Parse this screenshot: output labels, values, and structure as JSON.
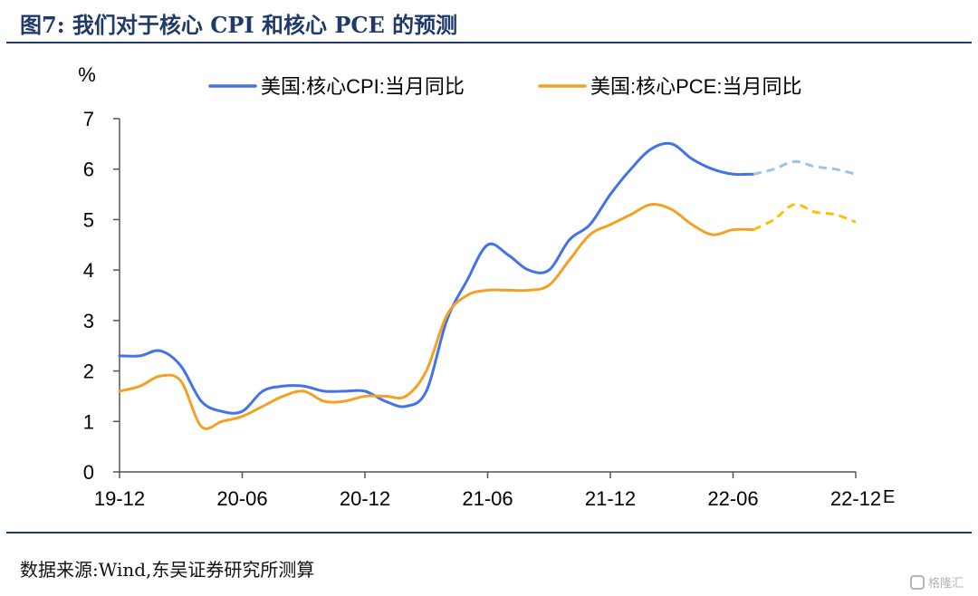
{
  "figure": {
    "title": "图7:  我们对于核心 CPI 和核心 PCE 的预测",
    "source": "数据来源:Wind,东吴证券研究所测算",
    "watermark": "格隆汇"
  },
  "chart_data": {
    "type": "line",
    "title": "",
    "ylabel": "%",
    "xlabel": "",
    "ylim": [
      0,
      7
    ],
    "y_ticks": [
      0,
      1,
      2,
      3,
      4,
      5,
      6,
      7
    ],
    "x_ticks": [
      "19-12",
      "20-06",
      "20-12",
      "21-06",
      "21-12",
      "22-06",
      "22-12"
    ],
    "x_suffix_label": "E",
    "legend_position": "top",
    "grid": false,
    "series": [
      {
        "name": "美国:核心CPI:当月同比",
        "color": "#4472e8",
        "forecast_color": "#9dc3e6",
        "x": [
          "2019-12",
          "2020-01",
          "2020-02",
          "2020-03",
          "2020-04",
          "2020-05",
          "2020-06",
          "2020-07",
          "2020-08",
          "2020-09",
          "2020-10",
          "2020-11",
          "2020-12",
          "2021-01",
          "2021-02",
          "2021-03",
          "2021-04",
          "2021-05",
          "2021-06",
          "2021-07",
          "2021-08",
          "2021-09",
          "2021-10",
          "2021-11",
          "2021-12",
          "2022-01",
          "2022-02",
          "2022-03",
          "2022-04",
          "2022-05",
          "2022-06",
          "2022-07",
          "2022-08",
          "2022-09",
          "2022-10",
          "2022-11",
          "2022-12"
        ],
        "values": [
          2.3,
          2.3,
          2.4,
          2.1,
          1.4,
          1.2,
          1.2,
          1.6,
          1.7,
          1.7,
          1.6,
          1.6,
          1.6,
          1.4,
          1.3,
          1.6,
          3.0,
          3.8,
          4.5,
          4.3,
          4.0,
          4.0,
          4.6,
          4.9,
          5.5,
          6.0,
          6.4,
          6.5,
          6.2,
          6.0,
          5.9,
          5.9,
          6.0,
          6.15,
          6.05,
          6.0,
          5.9
        ],
        "forecast_from": "2022-07"
      },
      {
        "name": "美国:核心PCE:当月同比",
        "color": "#f4a024",
        "forecast_color": "#ffc000",
        "x": [
          "2019-12",
          "2020-01",
          "2020-02",
          "2020-03",
          "2020-04",
          "2020-05",
          "2020-06",
          "2020-07",
          "2020-08",
          "2020-09",
          "2020-10",
          "2020-11",
          "2020-12",
          "2021-01",
          "2021-02",
          "2021-03",
          "2021-04",
          "2021-05",
          "2021-06",
          "2021-07",
          "2021-08",
          "2021-09",
          "2021-10",
          "2021-11",
          "2021-12",
          "2022-01",
          "2022-02",
          "2022-03",
          "2022-04",
          "2022-05",
          "2022-06",
          "2022-07",
          "2022-08",
          "2022-09",
          "2022-10",
          "2022-11",
          "2022-12"
        ],
        "values": [
          1.6,
          1.7,
          1.9,
          1.8,
          0.9,
          1.0,
          1.1,
          1.3,
          1.5,
          1.6,
          1.4,
          1.4,
          1.5,
          1.5,
          1.5,
          2.0,
          3.1,
          3.5,
          3.6,
          3.6,
          3.6,
          3.7,
          4.2,
          4.7,
          4.9,
          5.1,
          5.3,
          5.2,
          4.9,
          4.7,
          4.8,
          4.8,
          5.0,
          5.3,
          5.15,
          5.1,
          4.95
        ],
        "forecast_from": "2022-07"
      }
    ]
  }
}
